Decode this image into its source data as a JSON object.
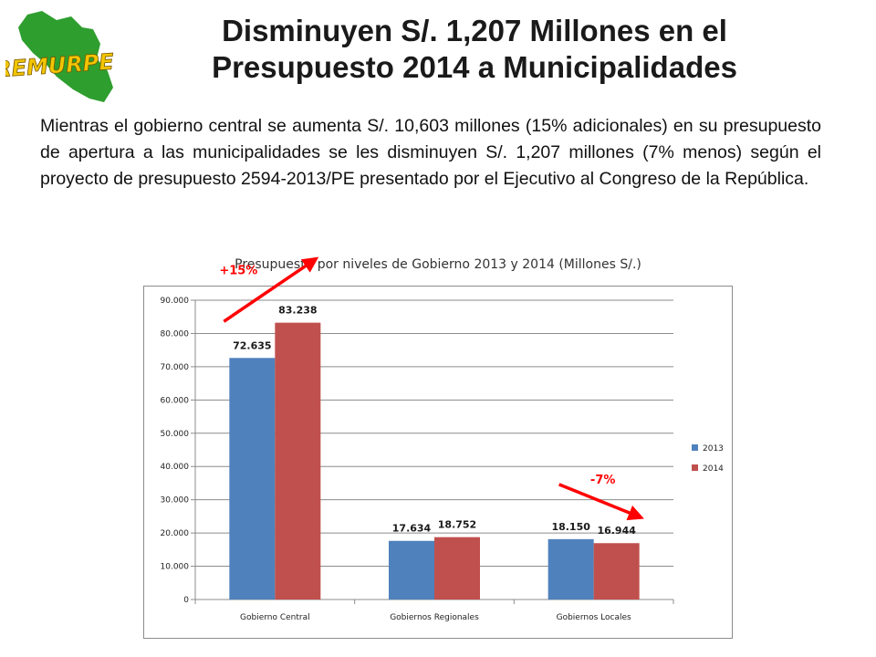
{
  "logo": {
    "text": "REMURPE",
    "color": "#2e9e2e",
    "text_color": "#f2c500"
  },
  "header": {
    "title_line1": "Disminuyen S/. 1,207 Millones en el",
    "title_line2": "Presupuesto 2014 a Municipalidades"
  },
  "intro": "Mientras el gobierno central se aumenta S/. 10,603 millones (15% adicionales) en su presupuesto de apertura a las municipalidades se les disminuyen S/. 1,207 millones (7% menos) según el proyecto de presupuesto 2594-2013/PE presentado por el Ejecutivo al Congreso de la República.",
  "chart_data": {
    "type": "bar",
    "title": "Presupuesto por niveles de Gobierno 2013 y 2014 (Millones S/.)",
    "categories": [
      "Gobierno Central",
      "Gobiernos Regionales",
      "Gobiernos Locales"
    ],
    "series": [
      {
        "name": "2013",
        "values": [
          72635,
          17634,
          18150
        ],
        "labels": [
          "72.635",
          "17.634",
          "18.150"
        ],
        "color": "#4f81bd"
      },
      {
        "name": "2014",
        "values": [
          83238,
          18752,
          16944
        ],
        "labels": [
          "83.238",
          "18.752",
          "16.944"
        ],
        "color": "#c0504d"
      }
    ],
    "ylim": [
      0,
      90000
    ],
    "yticks": [
      0,
      10000,
      20000,
      30000,
      40000,
      50000,
      60000,
      70000,
      80000,
      90000
    ],
    "ytick_labels": [
      "0",
      "10.000",
      "20.000",
      "30.000",
      "40.000",
      "50.000",
      "60.000",
      "70.000",
      "80.000",
      "90.000"
    ],
    "grid": true,
    "legend_position": "right",
    "annotations": [
      {
        "text": "+15%",
        "category": "Gobierno Central",
        "color": "#ff0000",
        "direction": "up"
      },
      {
        "text": "-7%",
        "category": "Gobiernos Locales",
        "color": "#ff0000",
        "direction": "down"
      }
    ]
  }
}
